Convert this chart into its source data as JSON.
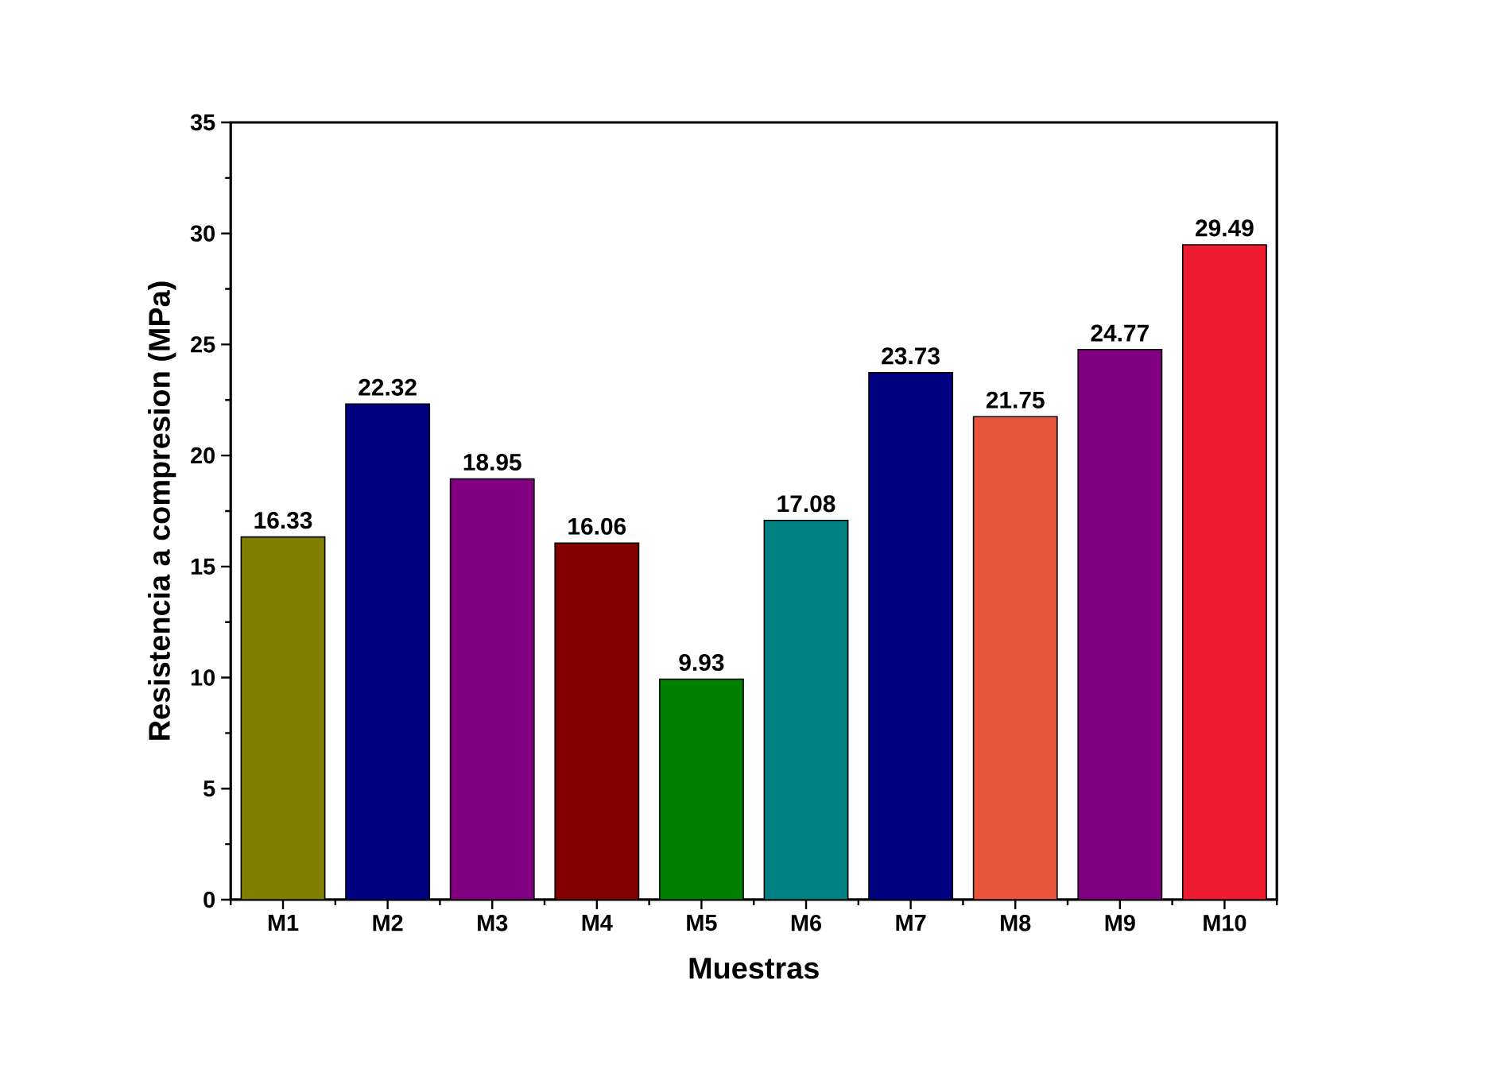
{
  "chart_data": {
    "type": "bar",
    "xlabel": "Muestras",
    "ylabel": "Resistencia a compresion (MPa)",
    "categories": [
      "M1",
      "M2",
      "M3",
      "M4",
      "M5",
      "M6",
      "M7",
      "M8",
      "M9",
      "M10"
    ],
    "values": [
      16.33,
      22.32,
      18.95,
      16.06,
      9.93,
      17.08,
      23.73,
      21.75,
      24.77,
      29.49
    ],
    "colors": [
      "#808000",
      "#000080",
      "#800080",
      "#800000",
      "#008000",
      "#008080",
      "#000080",
      "#e8553a",
      "#800080",
      "#ee1c2e"
    ],
    "ylim": [
      0,
      35
    ],
    "yticks": [
      0,
      5,
      10,
      15,
      20,
      25,
      30,
      35
    ],
    "data_labels": true
  }
}
